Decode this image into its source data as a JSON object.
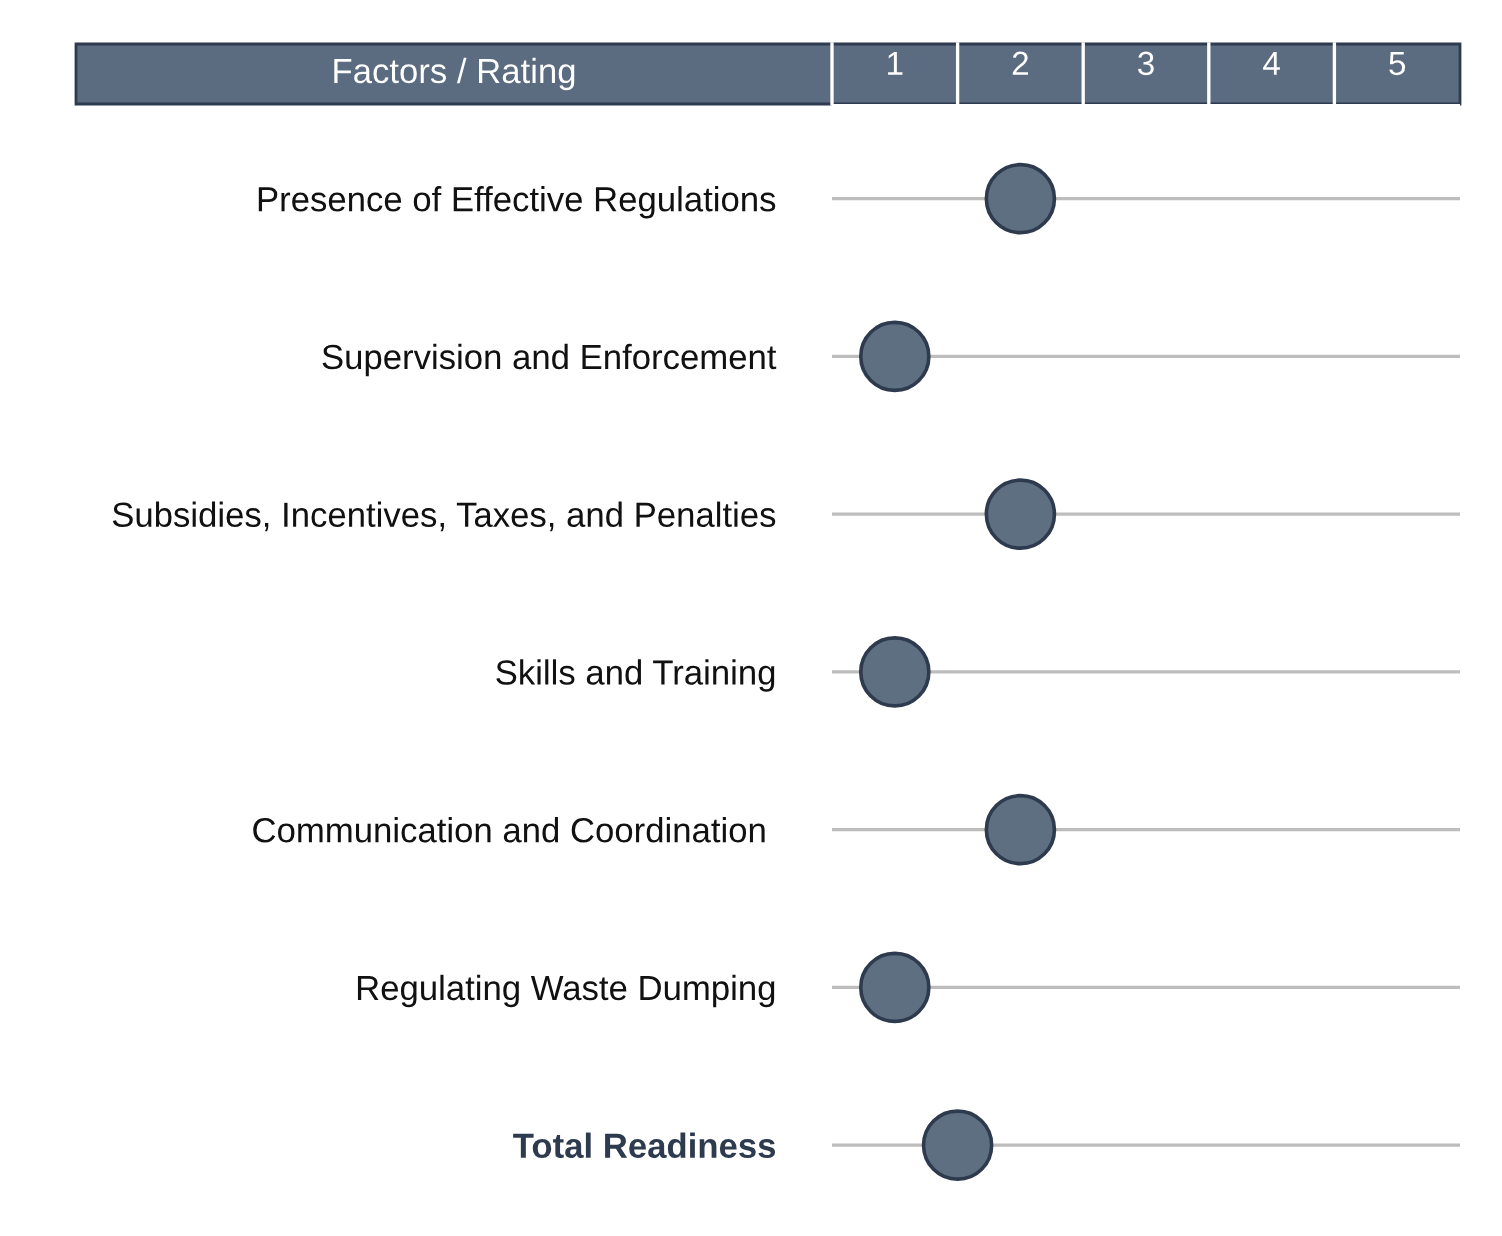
{
  "chart_data": {
    "type": "scatter",
    "orientation": "horizontal",
    "title": "Factors / Rating",
    "categories": [
      "Presence of Effective Regulations",
      "Supervision and Enforcement",
      "Subsidies, Incentives, Taxes, and Penalties",
      "Skills and Training",
      "Communication and Coordination ",
      "Regulating Waste Dumping",
      "Total Readiness"
    ],
    "series": [
      {
        "color": "#5f6f82",
        "values": [
          2,
          1,
          2,
          1,
          2,
          1,
          1.5
        ]
      }
    ],
    "xlim": [
      0.5,
      5.5
    ],
    "xticks": [
      1,
      2,
      3,
      4,
      5
    ],
    "grid": "y",
    "marker": "circle"
  }
}
